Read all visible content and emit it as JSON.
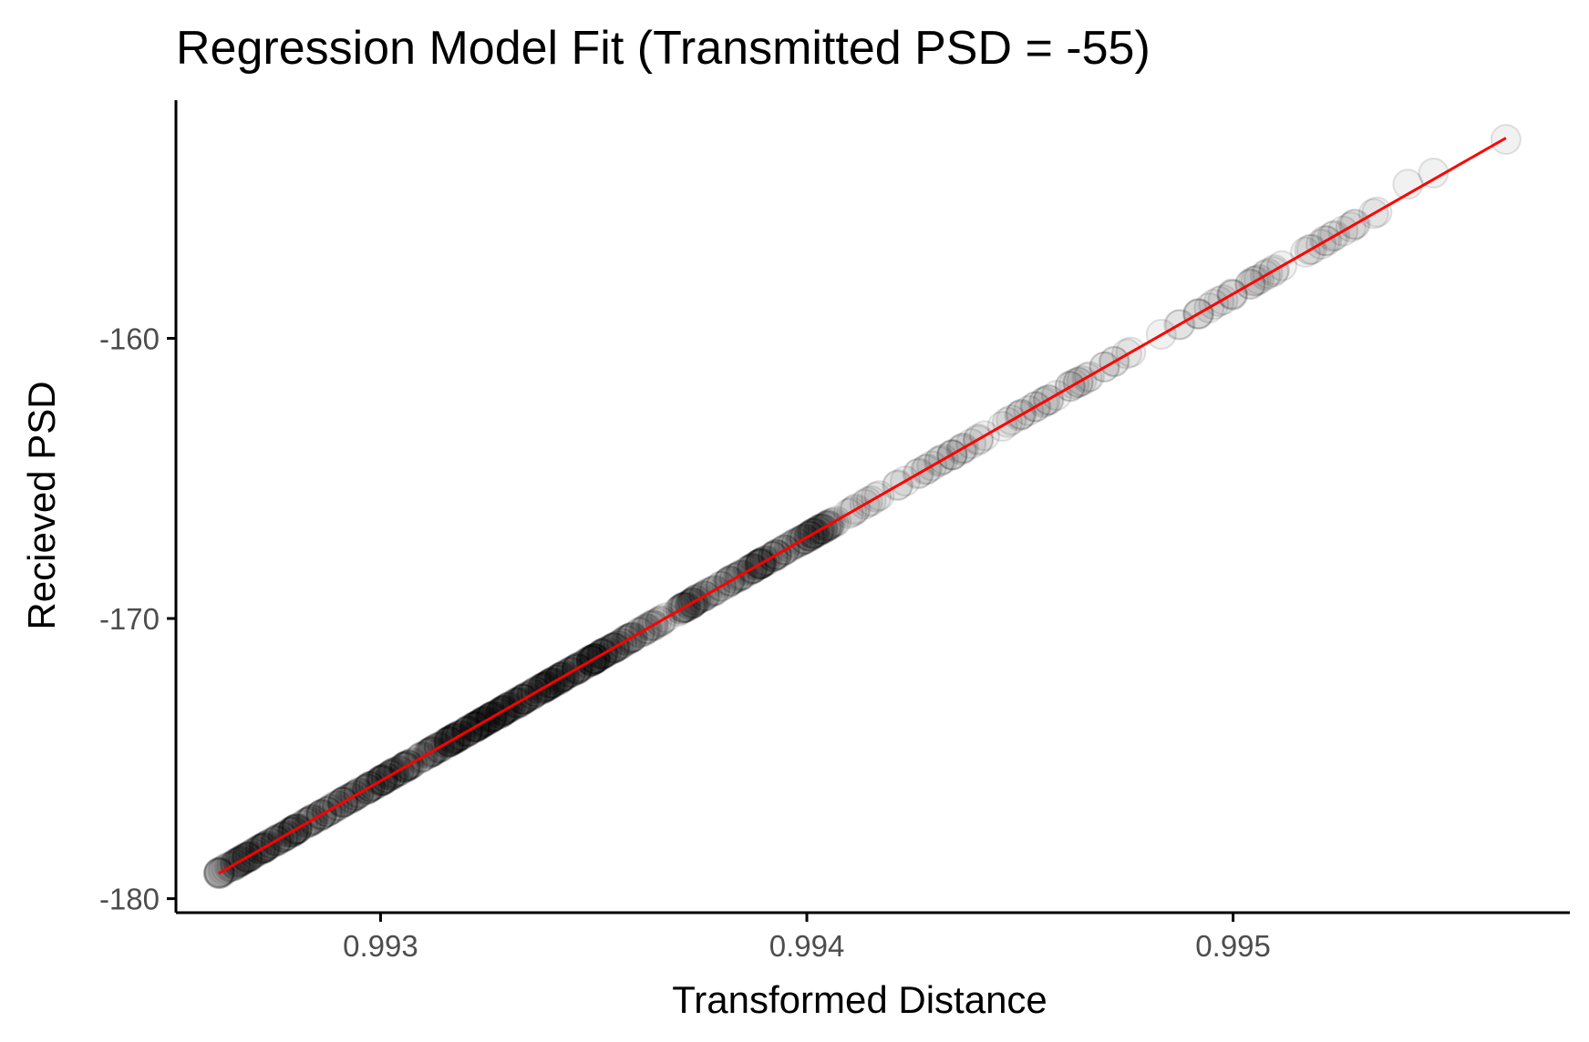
{
  "chart_data": {
    "type": "scatter",
    "title": "Regression Model Fit (Transmitted PSD = -55)",
    "xlabel": "Transformed Distance",
    "ylabel": "Recieved PSD",
    "xlim": [
      0.99252,
      0.99579
    ],
    "ylim": [
      -180.5,
      -151.5
    ],
    "x_ticks": [
      {
        "value": 0.993,
        "label": "0.993"
      },
      {
        "value": 0.994,
        "label": "0.994"
      },
      {
        "value": 0.995,
        "label": "0.995"
      }
    ],
    "y_ticks": [
      {
        "value": -160,
        "label": "-160"
      },
      {
        "value": -170,
        "label": "-170"
      },
      {
        "value": -180,
        "label": "-180"
      }
    ],
    "grid": false,
    "legend": "none",
    "point_style": {
      "color": "#000000",
      "alpha": 0.06,
      "shape": "open-circle"
    },
    "fit_line": {
      "color": "#ff0000",
      "x": [
        0.99262,
        0.99564
      ],
      "y": [
        -179.1,
        -152.85
      ]
    },
    "dense_segments": [
      {
        "x_from": 0.99262,
        "x_to": 0.9935,
        "count": 360
      },
      {
        "x_from": 0.9935,
        "x_to": 0.99408,
        "count": 170
      },
      {
        "x_from": 0.99408,
        "x_to": 0.99465,
        "count": 50
      },
      {
        "x_from": 0.99465,
        "x_to": 0.99535,
        "count": 45
      }
    ],
    "sparse_points": [
      {
        "x": 0.99262,
        "y": -179.1
      },
      {
        "x": 0.99266,
        "y": -178.8
      },
      {
        "x": 0.99541,
        "y": -154.5
      },
      {
        "x": 0.99547,
        "y": -154.1
      },
      {
        "x": 0.99564,
        "y": -152.9
      }
    ]
  }
}
